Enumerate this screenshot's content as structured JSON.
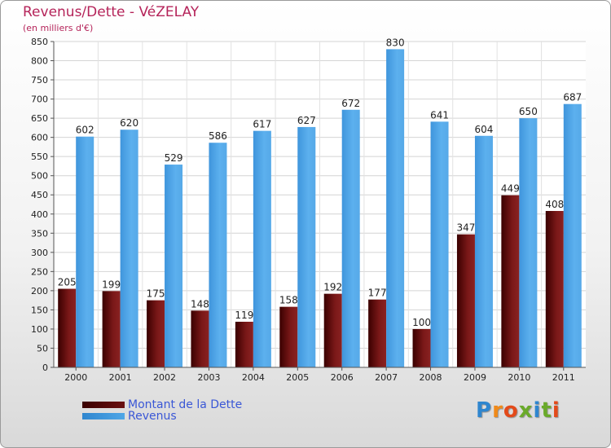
{
  "title": "Revenus/Dette - VéZELAY",
  "subtitle": "(en milliers d'€)",
  "legend": [
    {
      "label": "Montant de la Dette",
      "color": "#6b1111"
    },
    {
      "label": "Revenus",
      "color": "#4fa6e6"
    }
  ],
  "logo_text": "Proxiti",
  "chart_data": {
    "type": "bar",
    "categories": [
      "2000",
      "2001",
      "2002",
      "2003",
      "2004",
      "2005",
      "2006",
      "2007",
      "2008",
      "2009",
      "2010",
      "2011"
    ],
    "series": [
      {
        "name": "Montant de la Dette",
        "color": "#6b1111",
        "values": [
          205,
          199,
          175,
          148,
          119,
          158,
          192,
          177,
          100,
          347,
          449,
          408
        ]
      },
      {
        "name": "Revenus",
        "color": "#4fa6e6",
        "values": [
          602,
          620,
          529,
          586,
          617,
          627,
          672,
          830,
          641,
          604,
          650,
          687
        ]
      }
    ],
    "ylim": [
      0,
      850
    ],
    "ytick_step": 50,
    "grid": true
  }
}
